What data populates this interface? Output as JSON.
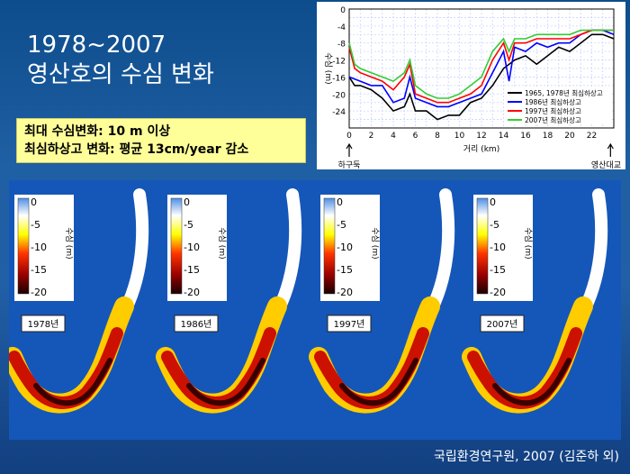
{
  "slide": {
    "title_line1": "1978~2007",
    "title_line2": "영산호의 수심 변화",
    "note_line1": "최대 수심변화: 10 m 이상",
    "note_line2": "최심하상고 변화: 평균 13cm/year 감소",
    "credit": "국립환경연구원, 2007 (김준하 외)"
  },
  "chart_data": {
    "type": "line",
    "ylabel": "수심 (m)",
    "xlabel": "거리 (km)",
    "x_start_label": "하구둑",
    "x_end_label": "영산대교",
    "ylim": [
      -28,
      0
    ],
    "xlim": [
      0,
      24
    ],
    "yticks": [
      "0",
      "-4",
      "-8",
      "-12",
      "-16",
      "-20",
      "-24"
    ],
    "xticks": [
      "0",
      "2",
      "4",
      "6",
      "8",
      "10",
      "12",
      "14",
      "16",
      "18",
      "20",
      "22"
    ],
    "series": [
      {
        "name": "1965, 1978년 최심하상고",
        "color": "#000000",
        "points": [
          [
            0,
            -16
          ],
          [
            0.5,
            -18
          ],
          [
            1,
            -18
          ],
          [
            2,
            -19
          ],
          [
            3,
            -21
          ],
          [
            4,
            -24
          ],
          [
            5,
            -23
          ],
          [
            5.5,
            -20
          ],
          [
            6,
            -24
          ],
          [
            7,
            -24
          ],
          [
            8,
            -26
          ],
          [
            9,
            -25
          ],
          [
            10,
            -25
          ],
          [
            11,
            -22
          ],
          [
            12,
            -21
          ],
          [
            13,
            -18
          ],
          [
            14,
            -14
          ],
          [
            15,
            -12
          ],
          [
            16,
            -11
          ],
          [
            17,
            -13
          ],
          [
            18,
            -11
          ],
          [
            19,
            -9
          ],
          [
            20,
            -10
          ],
          [
            21,
            -8
          ],
          [
            22,
            -6
          ],
          [
            23,
            -6
          ],
          [
            24,
            -7
          ]
        ]
      },
      {
        "name": "1986년 최심하상고",
        "color": "#0000ff",
        "points": [
          [
            0,
            -16
          ],
          [
            1,
            -17
          ],
          [
            2,
            -18
          ],
          [
            3,
            -18
          ],
          [
            4,
            -22
          ],
          [
            5,
            -21
          ],
          [
            5.5,
            -16
          ],
          [
            6,
            -21
          ],
          [
            7,
            -22
          ],
          [
            8,
            -23
          ],
          [
            9,
            -23
          ],
          [
            10,
            -22
          ],
          [
            11,
            -21
          ],
          [
            12,
            -20
          ],
          [
            13,
            -15
          ],
          [
            14,
            -10
          ],
          [
            14.5,
            -17
          ],
          [
            15,
            -9
          ],
          [
            16,
            -10
          ],
          [
            17,
            -8
          ],
          [
            18,
            -9
          ],
          [
            19,
            -8
          ],
          [
            20,
            -8
          ],
          [
            21,
            -6
          ],
          [
            22,
            -5
          ],
          [
            23,
            -5
          ],
          [
            24,
            -6
          ]
        ]
      },
      {
        "name": "1997년 최심하상고",
        "color": "#ff0000",
        "points": [
          [
            0,
            -9
          ],
          [
            0.5,
            -14
          ],
          [
            1,
            -15
          ],
          [
            2,
            -16
          ],
          [
            3,
            -17
          ],
          [
            4,
            -19
          ],
          [
            5,
            -16
          ],
          [
            5.5,
            -13
          ],
          [
            6,
            -20
          ],
          [
            7,
            -21
          ],
          [
            8,
            -22
          ],
          [
            9,
            -22
          ],
          [
            10,
            -21
          ],
          [
            11,
            -20
          ],
          [
            12,
            -18
          ],
          [
            13,
            -12
          ],
          [
            14,
            -8
          ],
          [
            14.5,
            -12
          ],
          [
            15,
            -8
          ],
          [
            16,
            -8
          ],
          [
            17,
            -7
          ],
          [
            18,
            -7
          ],
          [
            19,
            -7
          ],
          [
            20,
            -7
          ],
          [
            21,
            -6
          ],
          [
            22,
            -5
          ],
          [
            23,
            -5
          ],
          [
            24,
            -5
          ]
        ]
      },
      {
        "name": "2007년 최심하상고",
        "color": "#33cc33",
        "points": [
          [
            0,
            -8
          ],
          [
            0.5,
            -13
          ],
          [
            1,
            -14
          ],
          [
            2,
            -15
          ],
          [
            3,
            -16
          ],
          [
            4,
            -17
          ],
          [
            5,
            -15
          ],
          [
            5.5,
            -12
          ],
          [
            6,
            -18
          ],
          [
            7,
            -20
          ],
          [
            8,
            -21
          ],
          [
            9,
            -21
          ],
          [
            10,
            -20
          ],
          [
            11,
            -18
          ],
          [
            12,
            -16
          ],
          [
            13,
            -10
          ],
          [
            14,
            -7
          ],
          [
            14.5,
            -10
          ],
          [
            15,
            -7
          ],
          [
            16,
            -7
          ],
          [
            17,
            -6
          ],
          [
            18,
            -6
          ],
          [
            19,
            -6
          ],
          [
            20,
            -6
          ],
          [
            21,
            -5
          ],
          [
            22,
            -5
          ],
          [
            23,
            -5
          ],
          [
            24,
            -5
          ]
        ]
      }
    ]
  },
  "colorbar": {
    "ticks": [
      "0",
      "-5",
      "-10",
      "-15",
      "-20"
    ],
    "label": "수심 (m)"
  },
  "years": [
    "1978년",
    "1986년",
    "1997년",
    "2007년"
  ]
}
